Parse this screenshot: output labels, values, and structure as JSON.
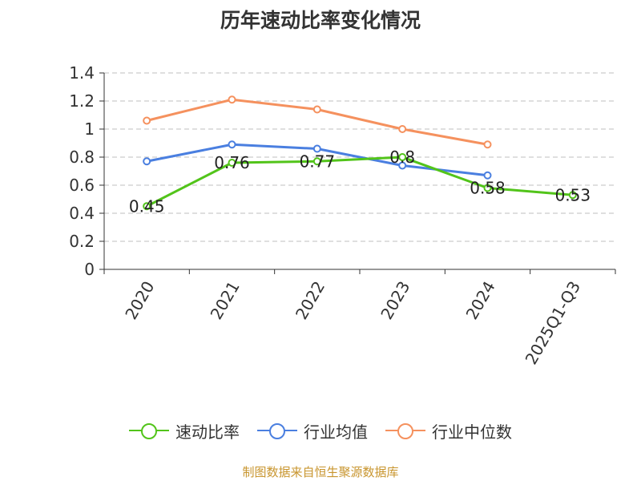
{
  "chart_data": {
    "type": "line",
    "title": "历年速动比率变化情况",
    "categories": [
      "2020",
      "2021",
      "2022",
      "2023",
      "2024",
      "2025Q1-Q3"
    ],
    "series": [
      {
        "name": "速动比率",
        "color": "#52c41a",
        "values": [
          0.45,
          0.76,
          0.77,
          0.8,
          0.58,
          0.53
        ],
        "labels": [
          "0.45",
          "0.76",
          "0.77",
          "0.8",
          "0.58",
          "0.53"
        ]
      },
      {
        "name": "行业均值",
        "color": "#4a7fe0",
        "values": [
          0.77,
          0.89,
          0.86,
          0.74,
          0.67,
          null
        ]
      },
      {
        "name": "行业中位数",
        "color": "#f5915e",
        "values": [
          1.06,
          1.21,
          1.14,
          1.0,
          0.89,
          null
        ]
      }
    ],
    "ylim": [
      0,
      1.4
    ],
    "yticks": [
      "0",
      "0.2",
      "0.4",
      "0.6",
      "0.8",
      "1",
      "1.2",
      "1.4"
    ],
    "ytick_values": [
      0,
      0.2,
      0.4,
      0.6,
      0.8,
      1.0,
      1.2,
      1.4
    ],
    "grid": true,
    "legend_position": "bottom",
    "xlabel": "",
    "ylabel": ""
  },
  "source": "制图数据来自恒生聚源数据库"
}
